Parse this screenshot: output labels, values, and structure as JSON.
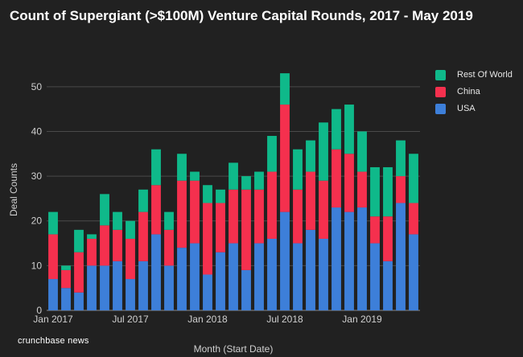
{
  "title": "Count of Supergiant (>$100M) Venture Capital Rounds, 2017 - May 2019",
  "brand": "crunchbase news",
  "chart_data": {
    "type": "bar",
    "stacked": true,
    "xlabel": "Month (Start Date)",
    "ylabel": "Deal Counts",
    "ylim": [
      0,
      55
    ],
    "yticks": [
      0,
      10,
      20,
      30,
      40,
      50
    ],
    "grid": true,
    "legend_position": "top-right",
    "categories": [
      "Jan 2017",
      "Feb 2017",
      "Mar 2017",
      "Apr 2017",
      "May 2017",
      "Jun 2017",
      "Jul 2017",
      "Aug 2017",
      "Sep 2017",
      "Oct 2017",
      "Nov 2017",
      "Dec 2017",
      "Jan 2018",
      "Feb 2018",
      "Mar 2018",
      "Apr 2018",
      "May 2018",
      "Jun 2018",
      "Jul 2018",
      "Aug 2018",
      "Sep 2018",
      "Oct 2018",
      "Nov 2018",
      "Dec 2018",
      "Jan 2019",
      "Feb 2019",
      "Mar 2019",
      "Apr 2019",
      "May 2019"
    ],
    "x_tick_labels": [
      {
        "index": 0,
        "label": "Jan 2017"
      },
      {
        "index": 6,
        "label": "Jul 2017"
      },
      {
        "index": 12,
        "label": "Jan 2018"
      },
      {
        "index": 18,
        "label": "Jul 2018"
      },
      {
        "index": 24,
        "label": "Jan 2019"
      }
    ],
    "series": [
      {
        "name": "USA",
        "color": "#3d7fd9",
        "values": [
          7,
          5,
          4,
          10,
          10,
          11,
          7,
          11,
          17,
          10,
          14,
          15,
          8,
          13,
          15,
          9,
          15,
          16,
          22,
          15,
          18,
          16,
          23,
          22,
          23,
          15,
          11,
          24,
          17
        ]
      },
      {
        "name": "China",
        "color": "#f5304e",
        "values": [
          10,
          4,
          9,
          6,
          9,
          7,
          9,
          11,
          11,
          8,
          15,
          14,
          16,
          11,
          12,
          18,
          12,
          15,
          24,
          12,
          13,
          13,
          13,
          13,
          8,
          6,
          10,
          6,
          7
        ]
      },
      {
        "name": "Rest Of World",
        "color": "#0fb98a",
        "values": [
          5,
          1,
          5,
          1,
          7,
          4,
          4,
          5,
          8,
          4,
          6,
          2,
          4,
          3,
          6,
          3,
          4,
          8,
          7,
          9,
          7,
          13,
          9,
          11,
          9,
          11,
          11,
          8,
          11
        ]
      }
    ],
    "legend_order": [
      "Rest Of World",
      "China",
      "USA"
    ]
  }
}
